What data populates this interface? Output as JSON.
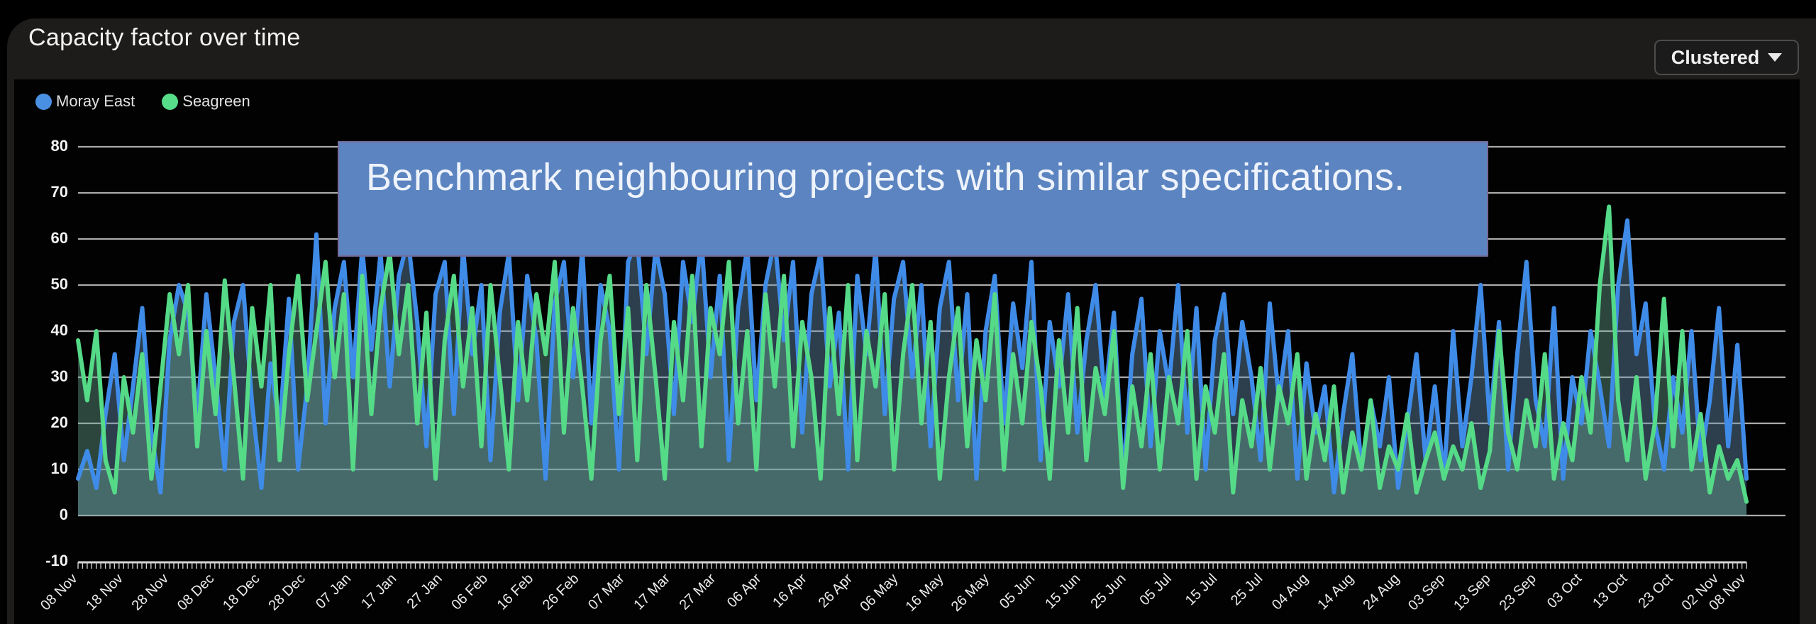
{
  "header": {
    "title": "Capacity factor over time"
  },
  "toolbar": {
    "view_selector": {
      "value": "Clustered",
      "icon": "caret-down-icon"
    }
  },
  "legend": [
    {
      "label": "Moray East",
      "color": "#4a90e2"
    },
    {
      "label": "Seagreen",
      "color": "#57dc8a"
    }
  ],
  "overlay_banner": {
    "text": "Benchmark neighbouring projects with similar specifications.",
    "bg": "#5b84c0"
  },
  "chart_data": {
    "type": "line",
    "title": "Capacity factor over time",
    "xlabel": "",
    "ylabel": "",
    "ylim": [
      -10,
      80
    ],
    "y_ticks": [
      80,
      70,
      60,
      50,
      40,
      30,
      20,
      10,
      0,
      -10
    ],
    "grid": "horizontal",
    "legend_position": "top-left",
    "x_span_days": 366,
    "sample_interval_days": 2,
    "x_tick_days": [
      0,
      10,
      20,
      30,
      40,
      50,
      60,
      70,
      80,
      90,
      100,
      110,
      120,
      130,
      140,
      150,
      160,
      170,
      180,
      190,
      200,
      210,
      220,
      230,
      240,
      250,
      260,
      270,
      280,
      290,
      300,
      310,
      320,
      330,
      340,
      350,
      360,
      366
    ],
    "x_tick_labels": [
      "08 Nov",
      "18 Nov",
      "28 Nov",
      "08 Dec",
      "18 Dec",
      "28 Dec",
      "07 Jan",
      "17 Jan",
      "27 Jan",
      "06 Feb",
      "16 Feb",
      "26 Feb",
      "07 Mar",
      "17 Mar",
      "27 Mar",
      "06 Apr",
      "16 Apr",
      "26 Apr",
      "06 May",
      "16 May",
      "26 May",
      "05 Jun",
      "15 Jun",
      "25 Jun",
      "05 Jul",
      "15 Jul",
      "25 Jul",
      "04 Aug",
      "14 Aug",
      "24 Aug",
      "03 Sep",
      "13 Sep",
      "23 Sep",
      "03 Oct",
      "13 Oct",
      "23 Oct",
      "02 Nov",
      "08 Nov"
    ],
    "series": [
      {
        "name": "Moray East",
        "color": "#3f8be8",
        "fill": "rgba(105,145,178,0.42)",
        "values": [
          8,
          14,
          6,
          22,
          35,
          12,
          28,
          45,
          18,
          5,
          38,
          50,
          44,
          21,
          48,
          30,
          10,
          42,
          50,
          24,
          6,
          33,
          19,
          47,
          10,
          28,
          61,
          20,
          45,
          55,
          30,
          58,
          36,
          57,
          28,
          52,
          60,
          42,
          15,
          48,
          55,
          22,
          58,
          35,
          50,
          12,
          44,
          57,
          25,
          52,
          38,
          8,
          46,
          55,
          30,
          58,
          20,
          50,
          40,
          10,
          55,
          60,
          35,
          58,
          48,
          22,
          55,
          42,
          60,
          30,
          52,
          12,
          45,
          58,
          25,
          50,
          60,
          38,
          55,
          18,
          48,
          57,
          28,
          44,
          10,
          52,
          35,
          58,
          22,
          47,
          55,
          30,
          50,
          15,
          45,
          55,
          25,
          48,
          8,
          40,
          52,
          20,
          46,
          32,
          55,
          12,
          42,
          28,
          48,
          18,
          38,
          50,
          25,
          44,
          8,
          35,
          47,
          15,
          40,
          28,
          50,
          18,
          45,
          10,
          38,
          48,
          22,
          42,
          30,
          12,
          46,
          25,
          40,
          8,
          33,
          18,
          28,
          5,
          22,
          35,
          10,
          25,
          15,
          30,
          6,
          20,
          35,
          12,
          28,
          8,
          40,
          15,
          30,
          50,
          20,
          42,
          10,
          35,
          55,
          25,
          15,
          45,
          8,
          30,
          20,
          40,
          28,
          15,
          50,
          64,
          35,
          46,
          20,
          10,
          30,
          18,
          40,
          12,
          25,
          45,
          15,
          37,
          8
        ]
      },
      {
        "name": "Seagreen",
        "color": "#55da87",
        "fill": "rgba(108,172,152,0.40)",
        "values": [
          38,
          25,
          40,
          12,
          5,
          30,
          18,
          35,
          8,
          28,
          48,
          35,
          50,
          15,
          40,
          22,
          51,
          30,
          8,
          45,
          28,
          50,
          12,
          35,
          52,
          25,
          40,
          55,
          30,
          48,
          10,
          52,
          22,
          45,
          57,
          35,
          50,
          20,
          44,
          8,
          38,
          52,
          28,
          45,
          15,
          50,
          30,
          10,
          42,
          25,
          48,
          35,
          55,
          18,
          45,
          28,
          8,
          38,
          52,
          22,
          45,
          12,
          50,
          30,
          8,
          42,
          25,
          52,
          15,
          45,
          35,
          55,
          20,
          40,
          10,
          48,
          28,
          52,
          15,
          42,
          30,
          8,
          45,
          22,
          50,
          12,
          40,
          28,
          48,
          10,
          35,
          50,
          20,
          42,
          8,
          30,
          45,
          15,
          38,
          25,
          48,
          10,
          35,
          20,
          42,
          28,
          8,
          38,
          18,
          45,
          12,
          32,
          22,
          40,
          6,
          28,
          15,
          35,
          10,
          30,
          20,
          40,
          8,
          28,
          18,
          35,
          5,
          25,
          15,
          32,
          10,
          28,
          20,
          35,
          8,
          22,
          12,
          28,
          5,
          18,
          10,
          25,
          6,
          15,
          10,
          22,
          5,
          12,
          18,
          8,
          15,
          10,
          20,
          6,
          14,
          40,
          18,
          10,
          25,
          15,
          35,
          8,
          20,
          12,
          30,
          18,
          50,
          67,
          25,
          12,
          30,
          8,
          20,
          47,
          15,
          40,
          10,
          22,
          5,
          15,
          8,
          12,
          3
        ]
      }
    ]
  }
}
